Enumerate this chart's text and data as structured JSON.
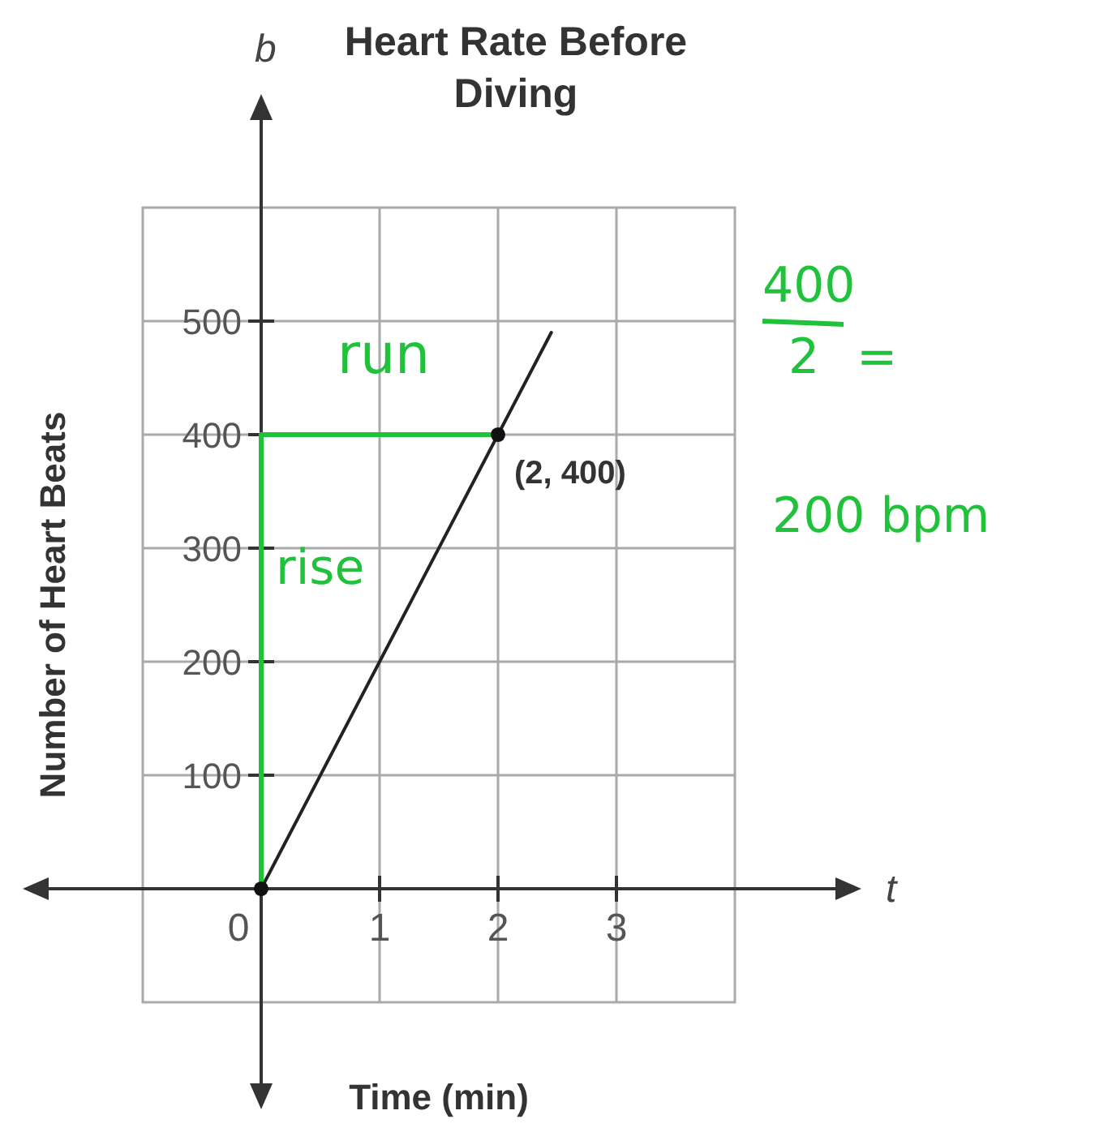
{
  "chart_data": {
    "type": "line",
    "title": "Heart Rate Before Diving",
    "xlabel": "Time (min)",
    "ylabel": "Number of Heart Beats",
    "xlim": [
      -1,
      4
    ],
    "ylim": [
      -100,
      600
    ],
    "xticks": [
      0,
      1,
      2,
      3
    ],
    "yticks": [
      100,
      200,
      300,
      400,
      500
    ],
    "grid": true,
    "series": [
      {
        "color": "#222222",
        "x": [
          0,
          2,
          2.45
        ],
        "values": [
          0,
          400,
          490
        ],
        "marker": "none"
      },
      {
        "color": "#1fc23a",
        "x": [
          0,
          0,
          2
        ],
        "values": [
          0,
          400,
          400
        ],
        "marker": "none"
      },
      {
        "type": "scatter",
        "color": "#111111",
        "x": [
          0,
          2
        ],
        "values": [
          0,
          400
        ],
        "marker": "circle"
      }
    ],
    "annotations": [
      "b",
      "t",
      {
        "text": "(2, 400)",
        "x": 2,
        "y": 400
      },
      "run",
      "rise",
      "400",
      "2",
      "=",
      "200 bpm"
    ]
  }
}
